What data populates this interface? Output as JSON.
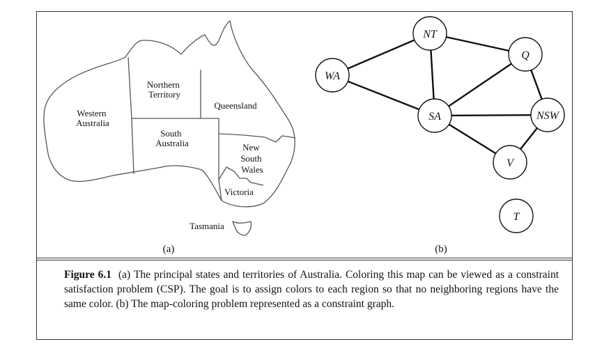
{
  "map": {
    "panel_label": "(a)",
    "regions": {
      "western_australia": [
        "Western",
        "Australia"
      ],
      "northern_territory": [
        "Northern",
        "Territory"
      ],
      "queensland": [
        "Queensland"
      ],
      "south_australia": [
        "South",
        "Australia"
      ],
      "new_south_wales": [
        "New",
        "South",
        "Wales"
      ],
      "victoria": [
        "Victoria"
      ],
      "tasmania": [
        "Tasmania"
      ]
    }
  },
  "graph": {
    "panel_label": "(b)",
    "nodes": [
      {
        "id": "NT",
        "label": "NT"
      },
      {
        "id": "WA",
        "label": "WA"
      },
      {
        "id": "Q",
        "label": "Q"
      },
      {
        "id": "SA",
        "label": "SA"
      },
      {
        "id": "NSW",
        "label": "NSW"
      },
      {
        "id": "V",
        "label": "V"
      },
      {
        "id": "T",
        "label": "T"
      }
    ],
    "edges": [
      [
        "WA",
        "NT"
      ],
      [
        "WA",
        "SA"
      ],
      [
        "NT",
        "SA"
      ],
      [
        "NT",
        "Q"
      ],
      [
        "SA",
        "Q"
      ],
      [
        "SA",
        "NSW"
      ],
      [
        "SA",
        "V"
      ],
      [
        "Q",
        "NSW"
      ],
      [
        "NSW",
        "V"
      ]
    ]
  },
  "caption": {
    "figure_label": "Figure 6.1",
    "text": "(a) The principal states and territories of Australia. Coloring this map can be viewed as a constraint satisfaction problem (CSP). The goal is to assign colors to each region so that no neighboring regions have the same color. (b) The map-coloring problem represented as a constraint graph."
  }
}
